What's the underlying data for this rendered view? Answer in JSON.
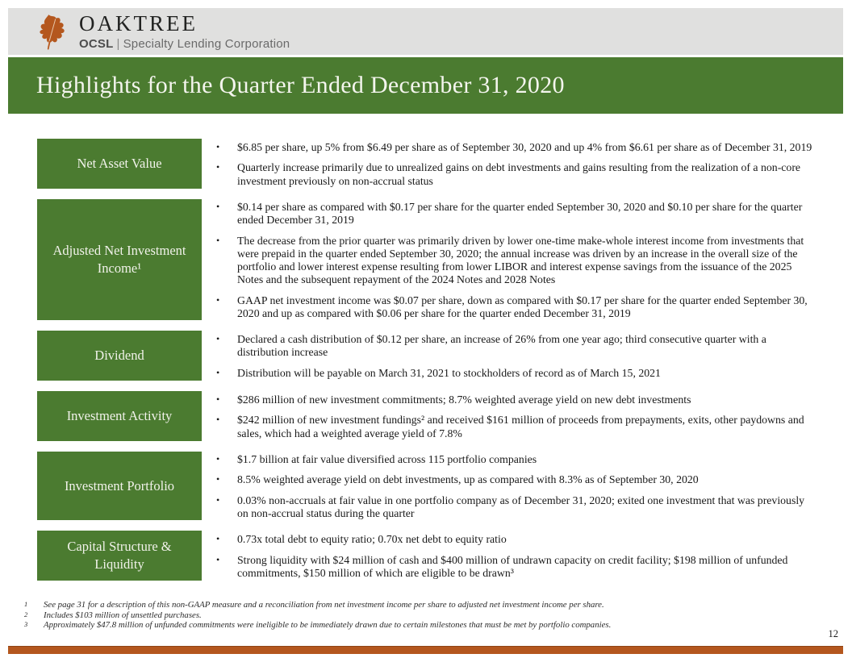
{
  "logo": {
    "brand": "OAKTREE",
    "sub_bold": "OCSL",
    "sub_divider": "|",
    "sub_rest": "Specialty Lending Corporation"
  },
  "title": "Highlights for the Quarter Ended December 31, 2020",
  "colors": {
    "green": "#4b7b30",
    "rust": "#b4571e",
    "header_gray": "#e0e0df",
    "label_text": "#f1f2ea"
  },
  "sections": [
    {
      "label": "Net Asset Value",
      "bullets": [
        "$6.85 per share, up 5% from $6.49 per share as of September 30, 2020 and up 4% from $6.61 per share as of December 31, 2019",
        "Quarterly increase primarily due to unrealized gains on debt investments and gains resulting from the realization of a non-core investment previously on non-accrual status"
      ]
    },
    {
      "label": "Adjusted Net Investment Income¹",
      "bullets": [
        "$0.14 per share as compared with $0.17 per share for the quarter ended September 30, 2020 and $0.10 per share for the quarter ended December 31, 2019",
        "The decrease from the prior quarter was primarily driven by lower one-time make-whole interest income from investments that were prepaid in the quarter ended September 30, 2020; the annual increase was driven by an increase in the overall size of the portfolio and lower interest expense resulting from lower LIBOR and interest expense savings from the issuance of the 2025 Notes and the subsequent repayment of the 2024 Notes and 2028 Notes",
        "GAAP net investment income was $0.07 per share, down as compared with $0.17 per share for the quarter ended September 30, 2020 and up as compared with $0.06 per share for the quarter ended December 31, 2019"
      ]
    },
    {
      "label": "Dividend",
      "bullets": [
        "Declared a cash distribution of $0.12 per share, an increase of 26% from one year ago; third consecutive quarter with a distribution increase",
        "Distribution will be payable on March 31, 2021 to stockholders of record as of March 15, 2021"
      ]
    },
    {
      "label": "Investment Activity",
      "bullets": [
        "$286 million of new investment commitments; 8.7% weighted average yield on new debt investments",
        "$242 million of new investment fundings² and received $161 million of proceeds from prepayments, exits, other paydowns and sales, which had a weighted average yield of 7.8%"
      ]
    },
    {
      "label": "Investment Portfolio",
      "bullets": [
        "$1.7 billion at fair value diversified across 115 portfolio companies",
        "8.5% weighted average yield on debt investments, up as compared with 8.3% as of September 30, 2020",
        "0.03% non-accruals at fair value in one portfolio company as of December 31, 2020; exited one investment that was previously on non-accrual status during the quarter"
      ]
    },
    {
      "label": "Capital Structure & Liquidity",
      "bullets": [
        "0.73x total debt to equity ratio; 0.70x net debt to equity ratio",
        "Strong liquidity with $24 million of cash and $400 million of undrawn capacity on credit facility; $198 million of unfunded commitments, $150 million of which are eligible to be drawn³"
      ]
    }
  ],
  "footnotes": [
    {
      "marker": "1",
      "text": "See page 31 for a description of this non-GAAP measure and a reconciliation from net investment income per share to adjusted net investment income per share."
    },
    {
      "marker": "2",
      "text": "Includes $103 million of unsettled purchases."
    },
    {
      "marker": "3",
      "text": "Approximately $47.8 million of unfunded commitments were ineligible to be immediately drawn due to certain milestones that must be met by portfolio companies."
    }
  ],
  "page_number": "12"
}
